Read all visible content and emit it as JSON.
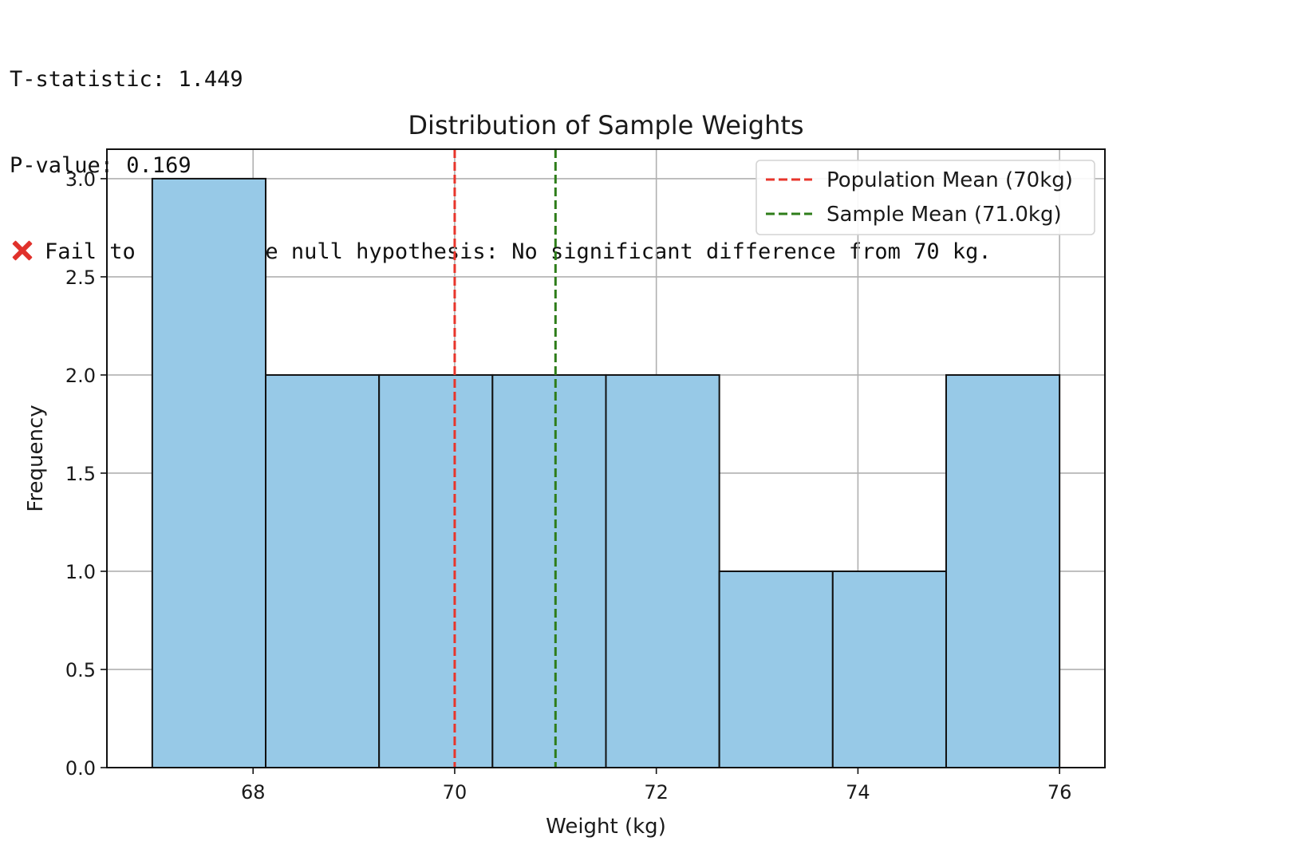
{
  "console": {
    "lines": [
      {
        "text": "T-statistic: 1.449"
      },
      {
        "text": "P-value: 0.169"
      },
      {
        "icon": "cross-mark-icon",
        "icon_color": "#e0312b",
        "text": "Fail to reject the null hypothesis: No significant difference from 70 kg."
      }
    ]
  },
  "chart_data": {
    "type": "bar",
    "title": "Distribution of Sample Weights",
    "xlabel": "Weight (kg)",
    "ylabel": "Frequency",
    "xlim": [
      66.55,
      76.45
    ],
    "ylim": [
      0,
      3.15
    ],
    "xticks": [
      "68",
      "70",
      "72",
      "74",
      "76"
    ],
    "yticks": [
      "0.0",
      "0.5",
      "1.0",
      "1.5",
      "2.0",
      "2.5",
      "3.0"
    ],
    "grid": true,
    "bins": [
      {
        "start": 67.0,
        "end": 68.125,
        "count": 3
      },
      {
        "start": 68.125,
        "end": 69.25,
        "count": 2
      },
      {
        "start": 69.25,
        "end": 70.375,
        "count": 2
      },
      {
        "start": 70.375,
        "end": 71.5,
        "count": 2
      },
      {
        "start": 71.5,
        "end": 72.625,
        "count": 2
      },
      {
        "start": 72.625,
        "end": 73.75,
        "count": 1
      },
      {
        "start": 73.75,
        "end": 74.875,
        "count": 1
      },
      {
        "start": 74.875,
        "end": 76.0,
        "count": 2
      }
    ],
    "bar_color": "#97c9e7",
    "bar_edge_color": "#111111",
    "reference_lines": [
      {
        "name": "Population Mean (70kg)",
        "x": 70.0,
        "color": "#e8352b",
        "style": "dashed"
      },
      {
        "name": "Sample Mean (71.0kg)",
        "x": 71.0,
        "color": "#2e7d1a",
        "style": "dashed"
      }
    ],
    "legend_position": "top-right"
  }
}
